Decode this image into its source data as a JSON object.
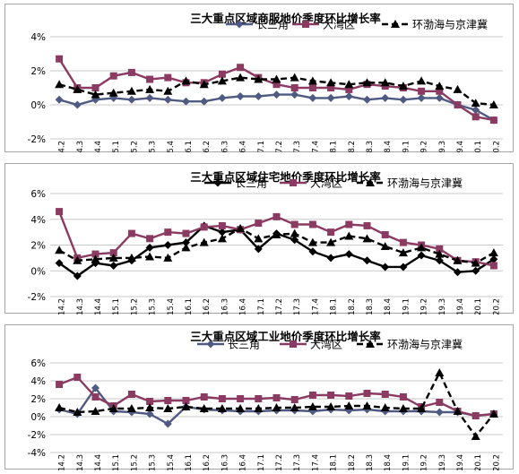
{
  "chart_data": [
    {
      "type": "line",
      "title": "三大重点区域商服地价季度环比增长率",
      "ylim": [
        -2,
        4
      ],
      "yticks": [
        "-2%",
        "0%",
        "2%",
        "4%"
      ],
      "grid": true,
      "legend_position": "top",
      "categories": [
        "2014.2",
        "2014.3",
        "2014.4",
        "2015.1",
        "2015.2",
        "2015.3",
        "2015.4",
        "2016.1",
        "2016.2",
        "2016.3",
        "2016.4",
        "2017.1",
        "2017.2",
        "2017.3",
        "2017.4",
        "2018.1",
        "2018.2",
        "2018.3",
        "2018.4",
        "2019.1",
        "2019.2",
        "2019.3",
        "2019.4",
        "2020.1",
        "2020.2"
      ],
      "series": [
        {
          "name": "长三角",
          "color": "#4f5a82",
          "marker": "diamond",
          "dash": false,
          "values": [
            0.3,
            0.0,
            0.3,
            0.4,
            0.3,
            0.4,
            0.3,
            0.2,
            0.2,
            0.4,
            0.5,
            0.5,
            0.6,
            0.6,
            0.4,
            0.4,
            0.5,
            0.3,
            0.4,
            0.3,
            0.4,
            0.4,
            0.0,
            -0.3,
            -0.9
          ]
        },
        {
          "name": "大湾区",
          "color": "#8b3a62",
          "marker": "square",
          "dash": false,
          "values": [
            2.7,
            1.0,
            1.0,
            1.7,
            1.9,
            1.5,
            1.6,
            1.3,
            1.3,
            1.8,
            2.2,
            1.6,
            1.2,
            1.0,
            1.0,
            1.0,
            0.9,
            1.2,
            1.1,
            1.0,
            0.8,
            0.8,
            0.0,
            -0.7,
            -0.9
          ]
        },
        {
          "name": "环渤海与京津冀",
          "color": "#000000",
          "marker": "triangle",
          "dash": true,
          "values": [
            1.2,
            0.9,
            0.6,
            0.7,
            0.8,
            0.9,
            0.8,
            1.4,
            1.2,
            1.4,
            1.6,
            1.5,
            1.5,
            1.6,
            1.4,
            1.3,
            1.2,
            1.3,
            1.3,
            1.1,
            1.4,
            1.1,
            0.9,
            0.1,
            0.0
          ]
        }
      ]
    },
    {
      "type": "line",
      "title": "三大重点区域住宅地价季度环比增长率",
      "ylim": [
        -2,
        6
      ],
      "yticks": [
        "-2%",
        "0%",
        "2%",
        "4%",
        "6%"
      ],
      "grid": true,
      "legend_position": "top",
      "categories": [
        "2014.2",
        "2014.3",
        "2014.4",
        "2015.1",
        "2015.2",
        "2015.3",
        "2015.4",
        "2016.1",
        "2016.2",
        "2016.3",
        "2016.4",
        "2017.1",
        "2017.2",
        "2017.3",
        "2017.4",
        "2018.1",
        "2018.2",
        "2018.3",
        "2018.4",
        "2019.1",
        "2019.2",
        "2019.3",
        "2019.4",
        "2020.1",
        "2020.2"
      ],
      "series": [
        {
          "name": "长三角",
          "color": "#000000",
          "marker": "diamond",
          "dash": false,
          "values": [
            0.6,
            -0.4,
            0.6,
            0.4,
            0.8,
            1.8,
            2.0,
            2.2,
            3.5,
            3.0,
            3.2,
            1.7,
            2.9,
            2.4,
            1.5,
            1.0,
            1.3,
            0.8,
            0.3,
            0.3,
            1.2,
            0.8,
            -0.1,
            0.0,
            0.9
          ]
        },
        {
          "name": "大湾区",
          "color": "#8b3a62",
          "marker": "square",
          "dash": false,
          "values": [
            4.6,
            1.0,
            1.3,
            1.4,
            2.9,
            2.5,
            3.0,
            2.9,
            3.4,
            3.5,
            3.2,
            3.7,
            4.2,
            3.6,
            3.6,
            3.0,
            3.6,
            3.5,
            2.8,
            2.2,
            2.0,
            1.7,
            0.8,
            0.7,
            0.4
          ]
        },
        {
          "name": "环渤海与京津冀",
          "color": "#000000",
          "marker": "triangle",
          "dash": true,
          "values": [
            1.6,
            0.8,
            0.9,
            1.0,
            1.0,
            1.1,
            1.0,
            1.8,
            2.2,
            2.5,
            3.3,
            2.5,
            2.8,
            2.9,
            2.2,
            2.2,
            2.7,
            2.5,
            1.9,
            1.4,
            1.8,
            1.3,
            0.8,
            0.6,
            1.4
          ]
        }
      ]
    },
    {
      "type": "line",
      "title": "三大重点区域工业地价季度环比增长率",
      "ylim": [
        -4,
        6
      ],
      "yticks": [
        "-4%",
        "-2%",
        "0%",
        "2%",
        "4%",
        "6%"
      ],
      "grid": true,
      "legend_position": "top",
      "categories": [
        "2014.2",
        "2014.3",
        "2014.4",
        "2015.1",
        "2015.2",
        "2015.3",
        "2015.4",
        "2016.1",
        "2016.2",
        "2016.3",
        "2016.4",
        "2017.1",
        "2017.2",
        "2017.3",
        "2017.4",
        "2018.1",
        "2018.2",
        "2018.3",
        "2018.4",
        "2019.1",
        "2019.2",
        "2019.3",
        "2019.4",
        "2020.1",
        "2020.2"
      ],
      "series": [
        {
          "name": "长三角",
          "color": "#4f5a82",
          "marker": "diamond",
          "dash": false,
          "values": [
            0.8,
            0.3,
            3.2,
            0.6,
            0.5,
            0.3,
            -0.8,
            1.1,
            0.8,
            0.7,
            0.6,
            0.6,
            0.7,
            0.7,
            0.6,
            0.8,
            0.7,
            0.8,
            0.6,
            0.6,
            0.6,
            0.5,
            0.5,
            0.1,
            0.3
          ]
        },
        {
          "name": "大湾区",
          "color": "#8b3a62",
          "marker": "square",
          "dash": false,
          "values": [
            3.6,
            4.4,
            2.2,
            1.2,
            2.5,
            1.7,
            1.8,
            1.8,
            2.2,
            2.0,
            2.0,
            2.0,
            2.1,
            1.9,
            2.4,
            2.4,
            2.3,
            2.6,
            2.5,
            2.2,
            1.1,
            1.6,
            0.6,
            0.1,
            0.3
          ]
        },
        {
          "name": "环渤海与京津冀",
          "color": "#000000",
          "marker": "triangle",
          "dash": true,
          "values": [
            1.0,
            0.5,
            0.6,
            0.9,
            0.9,
            1.0,
            0.9,
            1.1,
            0.9,
            0.9,
            0.9,
            0.9,
            1.0,
            1.0,
            1.1,
            1.1,
            1.2,
            1.2,
            1.0,
            0.9,
            0.9,
            4.9,
            0.6,
            -2.2,
            0.3
          ]
        }
      ]
    }
  ]
}
